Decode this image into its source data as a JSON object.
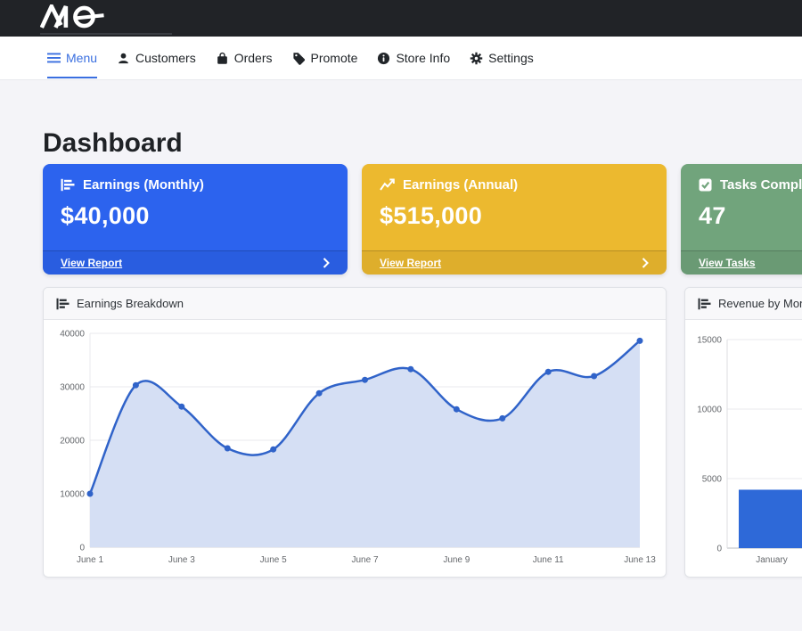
{
  "brand": {
    "logo_text": "AIQ"
  },
  "nav": {
    "active_color": "#3a6fe0",
    "items": [
      {
        "label": "Menu",
        "icon": "hamburger-icon",
        "active": true
      },
      {
        "label": "Customers",
        "icon": "person-icon",
        "active": false
      },
      {
        "label": "Orders",
        "icon": "shopping-bag-icon",
        "active": false
      },
      {
        "label": "Promote",
        "icon": "tag-icon",
        "active": false
      },
      {
        "label": "Store Info",
        "icon": "info-circle-icon",
        "active": false
      },
      {
        "label": "Settings",
        "icon": "gear-icon",
        "active": false
      }
    ]
  },
  "page": {
    "title": "Dashboard"
  },
  "stat_cards": [
    {
      "title": "Earnings (Monthly)",
      "value": "$40,000",
      "link_label": "View Report",
      "icon": "bar-chart-horizontal-icon",
      "bg_color": "#2c63ee",
      "has_chevron": true
    },
    {
      "title": "Earnings (Annual)",
      "value": "$515,000",
      "link_label": "View Report",
      "icon": "line-chart-icon",
      "bg_color": "#ecb92f",
      "has_chevron": true
    },
    {
      "title": "Tasks Completed",
      "value": "47",
      "link_label": "View Tasks",
      "icon": "check-square-icon",
      "bg_color": "#71a47c",
      "has_chevron": true
    }
  ],
  "chart_data": [
    {
      "type": "line",
      "title": "Earnings Breakdown",
      "x": [
        "June 1",
        "June 2",
        "June 3",
        "June 4",
        "June 5",
        "June 6",
        "June 7",
        "June 8",
        "June 9",
        "June 10",
        "June 11",
        "June 12",
        "June 13"
      ],
      "values": [
        10000,
        30300,
        26300,
        18500,
        18300,
        28800,
        31300,
        33300,
        25800,
        24100,
        32800,
        32000,
        38600
      ],
      "xlabel": "",
      "ylabel": "",
      "ylim": [
        0,
        40000
      ],
      "ytick_step": 10000,
      "xtick_every": 2,
      "grid": true,
      "legend": false,
      "line_color": "#3063c9",
      "point_color": "#3063c9",
      "fill_color": "#d5dff4",
      "tick_color": "#65686c"
    },
    {
      "type": "bar",
      "title": "Revenue by Month",
      "categories": [
        "January"
      ],
      "values": [
        4200
      ],
      "xlabel": "",
      "ylabel": "",
      "ylim": [
        0,
        15000
      ],
      "ytick_step": 5000,
      "grid": true,
      "legend": false,
      "bar_color": "#2e69d8",
      "tick_color": "#65686c"
    }
  ]
}
